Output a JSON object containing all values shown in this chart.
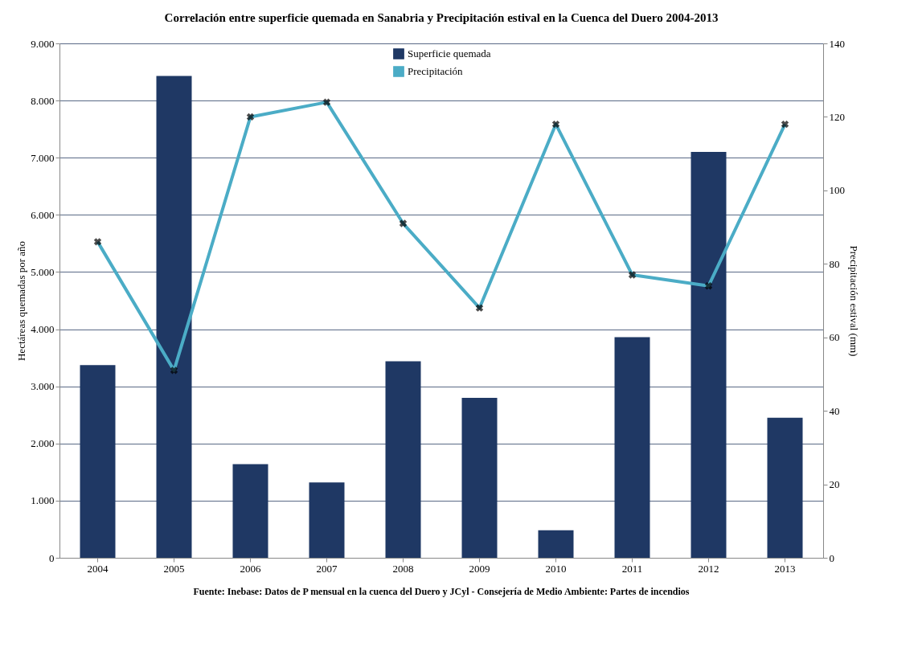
{
  "chart_data": {
    "type": "bar",
    "title": "Correlación entre superficie quemada en Sanabria y Precipitación estival en la Cuenca del Duero 2004-2013",
    "categories": [
      "2004",
      "2005",
      "2006",
      "2007",
      "2008",
      "2009",
      "2010",
      "2011",
      "2012",
      "2013"
    ],
    "series": [
      {
        "name": "Superficie quemada",
        "color": "#1f3864",
        "values": [
          3370,
          8430,
          1640,
          1320,
          3440,
          2800,
          480,
          3860,
          7100,
          2450
        ]
      },
      {
        "name": "Precipitación",
        "type": "line",
        "axis": "y2",
        "color": "#4bacc6",
        "marker": "cross",
        "values": [
          86,
          51,
          120,
          124,
          91,
          68,
          118,
          77,
          74,
          118
        ]
      }
    ],
    "ylabel": "Hectáreas quemadas por año",
    "y2label": "Precipitación estival (mm)",
    "ylim": [
      0,
      9000
    ],
    "yticks": [
      0,
      {
        "value": 1000,
        "label": "1.000"
      },
      {
        "value": 2000,
        "label": "2.000"
      },
      {
        "value": 3000,
        "label": "3.000"
      },
      {
        "value": 4000,
        "label": "4.000"
      },
      {
        "value": 5000,
        "label": "5.000"
      },
      {
        "value": 6000,
        "label": "6.000"
      },
      {
        "value": 7000,
        "label": "7.000"
      },
      {
        "value": 8000,
        "label": "8.000"
      },
      {
        "value": 9000,
        "label": "9.000"
      }
    ],
    "y2lim": [
      0,
      140
    ],
    "y2ticks": [
      0,
      20,
      40,
      60,
      80,
      100,
      120,
      140
    ],
    "grid": "y",
    "legend": "top",
    "annotations": [
      "Fuente: Inebase: Datos de P mensual en la cuenca del Duero y JCyl - Consejería de Medio Ambiente: Partes de incendios"
    ]
  }
}
